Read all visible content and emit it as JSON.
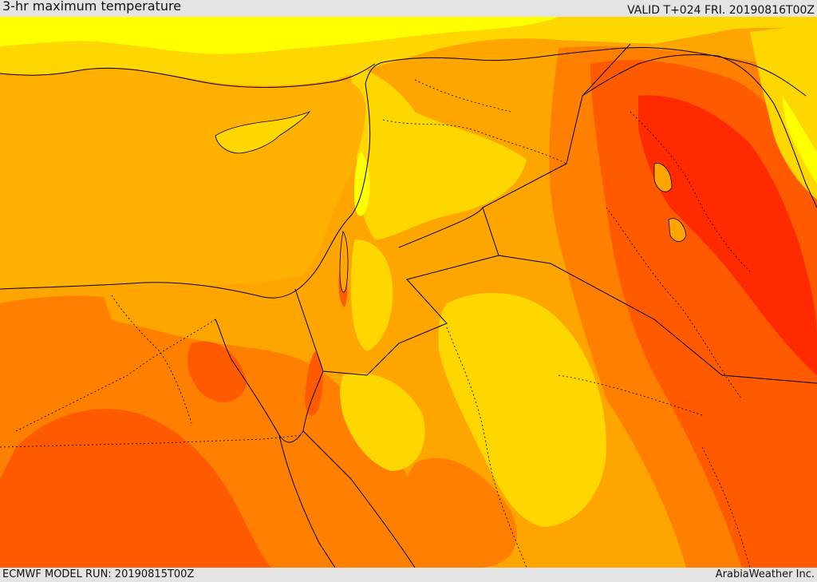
{
  "header": {
    "title": "3-hr maximum temperature",
    "valid": "VALID T+024 FRI. 20190816T00Z"
  },
  "footer": {
    "model_run": "ECMWF MODEL RUN: 20190815T00Z",
    "credit": "ArabiaWeather Inc."
  },
  "colors": {
    "mild": "#ffff00",
    "warm": "#ffd700",
    "hot": "#ffa500",
    "very_hot": "#ff8000",
    "extreme": "#ff5a00",
    "scorching": "#ff2a00",
    "boundaries": "#000000"
  }
}
